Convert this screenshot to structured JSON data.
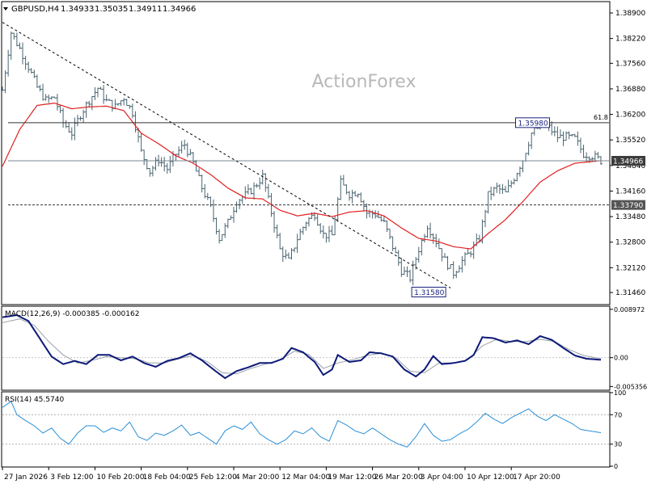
{
  "header": {
    "symbol": "GBPUSD,H4",
    "open": "1.34933",
    "high": "1.35035",
    "low": "1.34911",
    "close": "1.34966"
  },
  "watermark": "ActionForex",
  "colors": {
    "price": "#4a6470",
    "ma": "#e02020",
    "trend": "#000000",
    "macd": "#0c1a78",
    "signal": "#9aa0a8",
    "rsi": "#2a8fd6",
    "level": "#333333",
    "current_tag_bg": "#ffffff"
  },
  "chart_data": [
    {
      "type": "line",
      "name": "price",
      "title": "GBPUSD,H4",
      "x": [
        "27 Jan 2026",
        "3 Feb 12:00",
        "10 Feb 20:00",
        "18 Feb 04:00",
        "25 Feb 12:00",
        "4 Mar 20:00",
        "12 Mar 04:00",
        "19 Mar 12:00",
        "26 Mar 20:00",
        "3 Apr 04:00",
        "10 Apr 12:00",
        "17 Apr 20:00"
      ],
      "ylim": [
        1.3116,
        1.3918
      ],
      "yticks": [
        "1.38900",
        "1.38220",
        "1.37560",
        "1.36880",
        "1.36200",
        "1.35520",
        "1.34840",
        "1.34160",
        "1.33480",
        "1.32800",
        "1.32120",
        "1.31460"
      ],
      "ytick_values": [
        1.389,
        1.3822,
        1.3756,
        1.3688,
        1.362,
        1.3552,
        1.3484,
        1.3416,
        1.3348,
        1.328,
        1.3212,
        1.3146
      ],
      "close_path": [
        [
          0,
          1.3685
        ],
        [
          3,
          1.3838
        ],
        [
          6,
          1.3795
        ],
        [
          9,
          1.3746
        ],
        [
          12,
          1.3692
        ],
        [
          15,
          1.3658
        ],
        [
          18,
          1.3665
        ],
        [
          21,
          1.3598
        ],
        [
          24,
          1.357
        ],
        [
          27,
          1.362
        ],
        [
          30,
          1.3658
        ],
        [
          33,
          1.369
        ],
        [
          36,
          1.3655
        ],
        [
          39,
          1.364
        ],
        [
          42,
          1.3665
        ],
        [
          45,
          1.3625
        ],
        [
          48,
          1.352
        ],
        [
          51,
          1.3468
        ],
        [
          54,
          1.35
        ],
        [
          57,
          1.3475
        ],
        [
          60,
          1.3515
        ],
        [
          63,
          1.354
        ],
        [
          66,
          1.349
        ],
        [
          69,
          1.3425
        ],
        [
          72,
          1.3372
        ],
        [
          75,
          1.329
        ],
        [
          78,
          1.3332
        ],
        [
          81,
          1.339
        ],
        [
          84,
          1.3405
        ],
        [
          87,
          1.3425
        ],
        [
          90,
          1.3455
        ],
        [
          93,
          1.336
        ],
        [
          96,
          1.326
        ],
        [
          99,
          1.323
        ],
        [
          102,
          1.329
        ],
        [
          105,
          1.3335
        ],
        [
          108,
          1.3355
        ],
        [
          111,
          1.33
        ],
        [
          114,
          1.3298
        ],
        [
          117,
          1.3438
        ],
        [
          120,
          1.3408
        ],
        [
          123,
          1.3415
        ],
        [
          126,
          1.3358
        ],
        [
          129,
          1.3355
        ],
        [
          132,
          1.333
        ],
        [
          135,
          1.3268
        ],
        [
          138,
          1.3205
        ],
        [
          141,
          1.3185
        ],
        [
          144,
          1.3262
        ],
        [
          147,
          1.3325
        ],
        [
          150,
          1.3282
        ],
        [
          153,
          1.3232
        ],
        [
          156,
          1.3198
        ],
        [
          159,
          1.323
        ],
        [
          162,
          1.3256
        ],
        [
          165,
          1.329
        ],
        [
          168,
          1.3405
        ],
        [
          171,
          1.3425
        ],
        [
          174,
          1.341
        ],
        [
          177,
          1.3452
        ],
        [
          180,
          1.35
        ],
        [
          183,
          1.357
        ],
        [
          186,
          1.359
        ],
        [
          189,
          1.3585
        ],
        [
          192,
          1.356
        ],
        [
          195,
          1.356
        ],
        [
          198,
          1.3555
        ],
        [
          201,
          1.3515
        ],
        [
          204,
          1.351
        ],
        [
          207,
          1.3497
        ]
      ],
      "ma_path": [
        [
          0,
          1.3482
        ],
        [
          6,
          1.358
        ],
        [
          12,
          1.3644
        ],
        [
          18,
          1.365
        ],
        [
          24,
          1.3635
        ],
        [
          30,
          1.364
        ],
        [
          36,
          1.3642
        ],
        [
          42,
          1.363
        ],
        [
          48,
          1.357
        ],
        [
          54,
          1.3542
        ],
        [
          60,
          1.351
        ],
        [
          66,
          1.349
        ],
        [
          72,
          1.346
        ],
        [
          78,
          1.3424
        ],
        [
          84,
          1.3398
        ],
        [
          90,
          1.3395
        ],
        [
          96,
          1.3365
        ],
        [
          102,
          1.335
        ],
        [
          108,
          1.3357
        ],
        [
          114,
          1.3348
        ],
        [
          120,
          1.336
        ],
        [
          126,
          1.3364
        ],
        [
          132,
          1.335
        ],
        [
          138,
          1.3318
        ],
        [
          144,
          1.329
        ],
        [
          150,
          1.3283
        ],
        [
          156,
          1.3268
        ],
        [
          162,
          1.3262
        ],
        [
          168,
          1.3303
        ],
        [
          174,
          1.334
        ],
        [
          180,
          1.3388
        ],
        [
          186,
          1.344
        ],
        [
          192,
          1.347
        ],
        [
          198,
          1.349
        ],
        [
          207,
          1.3497
        ]
      ],
      "trendline": [
        [
          0,
          1.3865
        ],
        [
          155,
          1.3158
        ]
      ],
      "levels": [
        {
          "value": 1.3598,
          "style": "solid",
          "label": "1.35980",
          "right_label": "61.8"
        },
        {
          "value": 1.3379,
          "style": "dashed",
          "label": "1.33790"
        },
        {
          "value": 1.34966,
          "style": "solid",
          "label": "1.34966"
        }
      ],
      "annotations": [
        {
          "text": "1.35980",
          "x": 187,
          "y": 1.3598
        },
        {
          "text": "1.31580",
          "x": 155,
          "y": 1.3158
        }
      ]
    },
    {
      "type": "line",
      "name": "macd",
      "title": "MACD(12,26,9) -0.000385 -0.000162",
      "ylim": [
        -0.0059,
        0.0094
      ],
      "yticks": [
        "0.008972",
        "0.00",
        "-0.005356"
      ],
      "ytick_values": [
        0.008972,
        0.0,
        -0.005356
      ],
      "macd_path": [
        [
          0,
          0.0075
        ],
        [
          5,
          0.0079
        ],
        [
          9,
          0.0068
        ],
        [
          13,
          0.0035
        ],
        [
          17,
          0.0002
        ],
        [
          21,
          -0.0012
        ],
        [
          25,
          -0.0006
        ],
        [
          29,
          -0.0012
        ],
        [
          33,
          0.0005
        ],
        [
          37,
          0.0005
        ],
        [
          41,
          -0.0005
        ],
        [
          45,
          0.0002
        ],
        [
          49,
          -0.001
        ],
        [
          53,
          -0.0017
        ],
        [
          57,
          -0.0006
        ],
        [
          61,
          -0.0001
        ],
        [
          65,
          0.0008
        ],
        [
          69,
          -0.0005
        ],
        [
          73,
          -0.0022
        ],
        [
          77,
          -0.0038
        ],
        [
          81,
          -0.0025
        ],
        [
          85,
          -0.0018
        ],
        [
          89,
          -0.001
        ],
        [
          93,
          -0.001
        ],
        [
          97,
          -0.0002
        ],
        [
          100,
          0.0018
        ],
        [
          104,
          0.001
        ],
        [
          108,
          -0.0008
        ],
        [
          111,
          -0.0032
        ],
        [
          114,
          -0.0022
        ],
        [
          116,
          0.0005
        ],
        [
          120,
          -0.0008
        ],
        [
          124,
          -0.0005
        ],
        [
          127,
          0.001
        ],
        [
          131,
          0.0008
        ],
        [
          135,
          0.0002
        ],
        [
          139,
          -0.0022
        ],
        [
          143,
          -0.0035
        ],
        [
          146,
          -0.0022
        ],
        [
          149,
          0.0003
        ],
        [
          152,
          -0.0012
        ],
        [
          156,
          -0.001
        ],
        [
          160,
          -0.0006
        ],
        [
          163,
          0.0005
        ],
        [
          166,
          0.0038
        ],
        [
          170,
          0.0036
        ],
        [
          174,
          0.0028
        ],
        [
          178,
          0.0032
        ],
        [
          182,
          0.0025
        ],
        [
          186,
          0.004
        ],
        [
          190,
          0.0033
        ],
        [
          194,
          0.0018
        ],
        [
          198,
          0.0004
        ],
        [
          202,
          -0.0002
        ],
        [
          207,
          -0.0004
        ]
      ],
      "signal_path": [
        [
          0,
          0.0065
        ],
        [
          6,
          0.0072
        ],
        [
          11,
          0.006
        ],
        [
          16,
          0.003
        ],
        [
          21,
          0.0005
        ],
        [
          26,
          -0.001
        ],
        [
          31,
          -0.0005
        ],
        [
          36,
          0.0002
        ],
        [
          41,
          0.0
        ],
        [
          46,
          -0.0002
        ],
        [
          51,
          -0.001
        ],
        [
          56,
          -0.001
        ],
        [
          61,
          -0.0002
        ],
        [
          66,
          0.0004
        ],
        [
          71,
          -0.0008
        ],
        [
          76,
          -0.0028
        ],
        [
          81,
          -0.003
        ],
        [
          86,
          -0.002
        ],
        [
          91,
          -0.0012
        ],
        [
          96,
          -0.0004
        ],
        [
          101,
          0.0012
        ],
        [
          106,
          0.0006
        ],
        [
          111,
          -0.002
        ],
        [
          116,
          -0.001
        ],
        [
          121,
          -0.0004
        ],
        [
          126,
          0.0004
        ],
        [
          131,
          0.0008
        ],
        [
          136,
          0.0
        ],
        [
          141,
          -0.0025
        ],
        [
          146,
          -0.0028
        ],
        [
          151,
          -0.001
        ],
        [
          156,
          -0.001
        ],
        [
          161,
          -0.0004
        ],
        [
          166,
          0.0022
        ],
        [
          171,
          0.0034
        ],
        [
          176,
          0.003
        ],
        [
          181,
          0.003
        ],
        [
          186,
          0.0034
        ],
        [
          191,
          0.003
        ],
        [
          196,
          0.0015
        ],
        [
          201,
          0.0004
        ],
        [
          207,
          -0.0002
        ]
      ],
      "zero_line": 0.0
    },
    {
      "type": "line",
      "name": "rsi",
      "title": "RSI(14) 45.5740",
      "ylim": [
        0,
        100
      ],
      "yticks": [
        "100",
        "70",
        "30",
        "0"
      ],
      "ytick_values": [
        100,
        70,
        30,
        0
      ],
      "rsi_path": [
        [
          0,
          80
        ],
        [
          3,
          88
        ],
        [
          5,
          70
        ],
        [
          8,
          62
        ],
        [
          11,
          55
        ],
        [
          14,
          45
        ],
        [
          17,
          52
        ],
        [
          20,
          38
        ],
        [
          23,
          30
        ],
        [
          26,
          45
        ],
        [
          29,
          55
        ],
        [
          32,
          55
        ],
        [
          35,
          46
        ],
        [
          38,
          52
        ],
        [
          41,
          48
        ],
        [
          44,
          60
        ],
        [
          47,
          40
        ],
        [
          50,
          35
        ],
        [
          53,
          45
        ],
        [
          56,
          42
        ],
        [
          59,
          48
        ],
        [
          62,
          56
        ],
        [
          65,
          42
        ],
        [
          68,
          46
        ],
        [
          71,
          38
        ],
        [
          74,
          30
        ],
        [
          77,
          48
        ],
        [
          80,
          55
        ],
        [
          83,
          50
        ],
        [
          86,
          60
        ],
        [
          89,
          44
        ],
        [
          92,
          36
        ],
        [
          95,
          30
        ],
        [
          98,
          36
        ],
        [
          101,
          48
        ],
        [
          104,
          44
        ],
        [
          107,
          52
        ],
        [
          110,
          40
        ],
        [
          113,
          34
        ],
        [
          116,
          62
        ],
        [
          119,
          56
        ],
        [
          122,
          48
        ],
        [
          125,
          44
        ],
        [
          128,
          52
        ],
        [
          131,
          44
        ],
        [
          134,
          36
        ],
        [
          137,
          30
        ],
        [
          140,
          26
        ],
        [
          143,
          40
        ],
        [
          146,
          58
        ],
        [
          149,
          42
        ],
        [
          152,
          34
        ],
        [
          155,
          36
        ],
        [
          158,
          44
        ],
        [
          161,
          50
        ],
        [
          164,
          60
        ],
        [
          167,
          72
        ],
        [
          170,
          64
        ],
        [
          173,
          58
        ],
        [
          176,
          66
        ],
        [
          179,
          72
        ],
        [
          182,
          78
        ],
        [
          185,
          68
        ],
        [
          188,
          62
        ],
        [
          191,
          70
        ],
        [
          194,
          64
        ],
        [
          197,
          58
        ],
        [
          200,
          50
        ],
        [
          203,
          48
        ],
        [
          207,
          45.6
        ]
      ],
      "bands": [
        70,
        30
      ]
    }
  ],
  "x_axis": {
    "labels": [
      "27 Jan 2026",
      "3 Feb 12:00",
      "10 Feb 20:00",
      "18 Feb 04:00",
      "25 Feb 12:00",
      "4 Mar 20:00",
      "12 Mar 04:00",
      "19 Mar 12:00",
      "26 Mar 20:00",
      "3 Apr 04:00",
      "10 Apr 12:00",
      "17 Apr 20:00"
    ],
    "label_bar_index": [
      0,
      16,
      32,
      48,
      64,
      80,
      96,
      112,
      128,
      144,
      160,
      176
    ]
  }
}
